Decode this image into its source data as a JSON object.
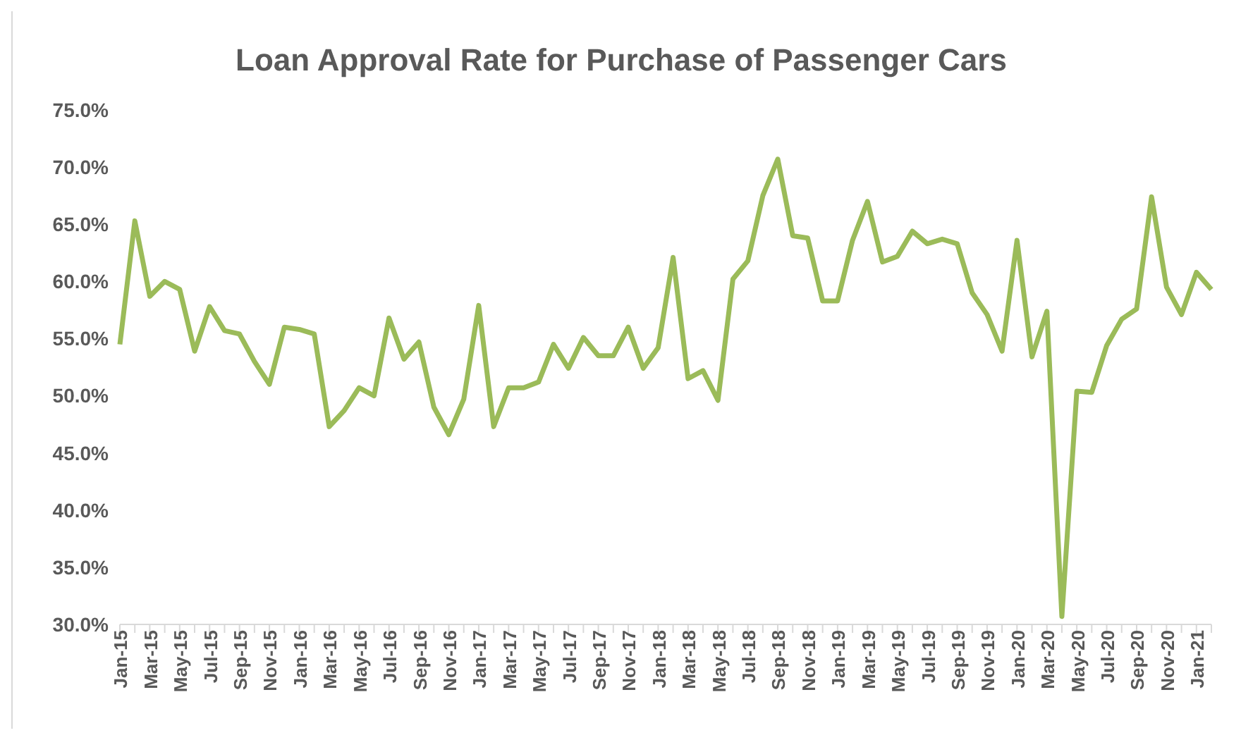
{
  "chart_data": {
    "type": "line",
    "title": "Loan Approval Rate for Purchase of Passenger Cars",
    "categories": [
      "Jan-15",
      null,
      "Mar-15",
      null,
      "May-15",
      null,
      "Jul-15",
      null,
      "Sep-15",
      null,
      "Nov-15",
      null,
      "Jan-16",
      null,
      "Mar-16",
      null,
      "May-16",
      null,
      "Jul-16",
      null,
      "Sep-16",
      null,
      "Nov-16",
      null,
      "Jan-17",
      null,
      "Mar-17",
      null,
      "May-17",
      null,
      "Jul-17",
      null,
      "Sep-17",
      null,
      "Nov-17",
      null,
      "Jan-18",
      null,
      "Mar-18",
      null,
      "May-18",
      null,
      "Jul-18",
      null,
      "Sep-18",
      null,
      "Nov-18",
      null,
      "Jan-19",
      null,
      "Mar-19",
      null,
      "May-19",
      null,
      "Jul-19",
      null,
      "Sep-19",
      null,
      "Nov-19",
      null,
      "Jan-20",
      null,
      "Mar-20",
      null,
      "May-20",
      null,
      "Jul-20",
      null,
      "Sep-20",
      null,
      "Nov-20",
      null,
      "Jan-21",
      null
    ],
    "series": [
      {
        "color": "#9bbb59",
        "values": [
          54.5,
          65.3,
          58.7,
          60.0,
          59.3,
          53.9,
          57.8,
          55.7,
          55.4,
          53.0,
          51.0,
          56.0,
          55.8,
          55.4,
          47.3,
          48.7,
          50.7,
          50.0,
          56.8,
          53.2,
          54.7,
          49.0,
          46.6,
          49.7,
          57.9,
          47.3,
          50.7,
          50.7,
          51.2,
          54.5,
          52.4,
          55.1,
          53.5,
          53.5,
          56.0,
          52.4,
          54.2,
          62.1,
          51.5,
          52.2,
          49.6,
          60.2,
          61.8,
          67.5,
          70.7,
          64.0,
          63.8,
          58.3,
          58.3,
          63.6,
          67.0,
          61.7,
          62.2,
          64.4,
          63.3,
          63.7,
          63.3,
          59.0,
          57.1,
          53.9,
          63.6,
          53.4,
          57.4,
          30.7,
          50.4,
          50.3,
          54.4,
          56.7,
          57.6,
          67.4,
          59.5,
          57.1,
          60.8,
          59.3
        ]
      }
    ],
    "ylim": [
      30,
      75
    ],
    "yticks": [
      {
        "value": 30,
        "label": "30.0%"
      },
      {
        "value": 35,
        "label": "35.0%"
      },
      {
        "value": 40,
        "label": "40.0%"
      },
      {
        "value": 45,
        "label": "45.0%"
      },
      {
        "value": 50,
        "label": "50.0%"
      },
      {
        "value": 55,
        "label": "55.0%"
      },
      {
        "value": 60,
        "label": "60.0%"
      },
      {
        "value": 65,
        "label": "65.0%"
      },
      {
        "value": 70,
        "label": "70.0%"
      },
      {
        "value": 75,
        "label": "75.0%"
      }
    ],
    "grid": false,
    "legend": false,
    "marker": "none",
    "line_style": "solid"
  }
}
